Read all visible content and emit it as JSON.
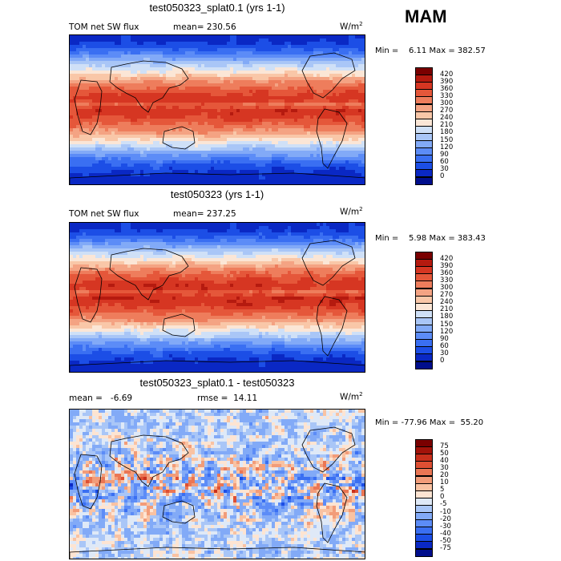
{
  "season": "MAM",
  "panels": [
    {
      "title": "test050323_splat0.1 (yrs 1-1)",
      "left_label": "TOM net SW flux",
      "center_label": "mean= 230.56",
      "units": "W/m",
      "units_sup": "2",
      "minmax": "Min =    6.11 Max = 382.57"
    },
    {
      "title": "test050323 (yrs 1-1)",
      "left_label": "TOM net SW flux",
      "center_label": "mean= 237.25",
      "units": "W/m",
      "units_sup": "2",
      "minmax": "Min =    5.98 Max = 383.43"
    },
    {
      "title": "test050323_splat0.1 - test050323",
      "left_label": "mean =   -6.69",
      "center_label": "rmse =  14.11",
      "units": "W/m",
      "units_sup": "2",
      "minmax": "Min = -77.96 Max =  55.20"
    }
  ],
  "chart_data": [
    {
      "type": "heatmap",
      "title": "test050323_splat0.1 (yrs 1-1)",
      "variable": "TOM net SW flux",
      "units": "W/m2",
      "mean": 230.56,
      "min": 6.11,
      "max": 382.57,
      "colorbar_levels": [
        0,
        30,
        60,
        90,
        120,
        150,
        180,
        210,
        240,
        270,
        300,
        330,
        360,
        390,
        420
      ],
      "colors": [
        "#000e8c",
        "#0a28c4",
        "#1c4ee6",
        "#3a6ff2",
        "#5c8cf7",
        "#82aaf7",
        "#a9c6f7",
        "#cfe0f7",
        "#fbe6d6",
        "#f9c7a8",
        "#f4a383",
        "#ee7d5c",
        "#e5573a",
        "#d63622",
        "#b51a0f",
        "#7a0000"
      ]
    },
    {
      "type": "heatmap",
      "title": "test050323 (yrs 1-1)",
      "variable": "TOM net SW flux",
      "units": "W/m2",
      "mean": 237.25,
      "min": 5.98,
      "max": 383.43,
      "colorbar_levels": [
        0,
        30,
        60,
        90,
        120,
        150,
        180,
        210,
        240,
        270,
        300,
        330,
        360,
        390,
        420
      ],
      "colors": [
        "#000e8c",
        "#0a28c4",
        "#1c4ee6",
        "#3a6ff2",
        "#5c8cf7",
        "#82aaf7",
        "#a9c6f7",
        "#cfe0f7",
        "#fbe6d6",
        "#f9c7a8",
        "#f4a383",
        "#ee7d5c",
        "#e5573a",
        "#d63622",
        "#b51a0f",
        "#7a0000"
      ]
    },
    {
      "type": "heatmap",
      "title": "test050323_splat0.1 - test050323",
      "units": "W/m2",
      "mean": -6.69,
      "rmse": 14.11,
      "min": -77.96,
      "max": 55.2,
      "colorbar_levels": [
        -75,
        -50,
        -40,
        -30,
        -20,
        -10,
        -5,
        0,
        5,
        10,
        20,
        30,
        40,
        50,
        75
      ],
      "colors": [
        "#000e8c",
        "#0a28c4",
        "#1c4ee6",
        "#3a6ff2",
        "#5c8cf7",
        "#82aaf7",
        "#a9c6f7",
        "#dfe9f7",
        "#fde4d2",
        "#f9c2a2",
        "#f29c79",
        "#ea7654",
        "#de4f33",
        "#c9301c",
        "#a3130a",
        "#7a0000"
      ]
    }
  ]
}
